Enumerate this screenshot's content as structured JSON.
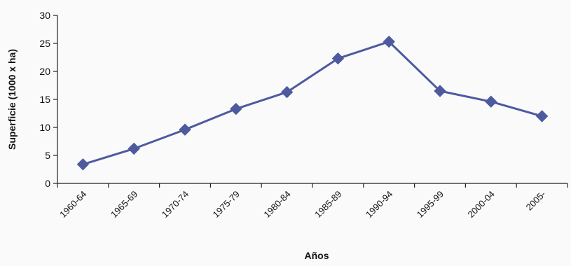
{
  "chart_data": {
    "type": "line",
    "title": "",
    "xlabel": "Años",
    "ylabel": "Superficie (1000 x ha)",
    "categories": [
      "1960-64",
      "1965-69",
      "1970-74",
      "1975-79",
      "1980-84",
      "1985-89",
      "1990-94",
      "1995-99",
      "2000-04",
      "2005-"
    ],
    "series": [
      {
        "values": [
          3.4,
          6.2,
          9.6,
          13.3,
          16.3,
          22.3,
          25.3,
          16.5,
          14.6,
          12.0
        ],
        "color": "#4d5a9e",
        "marker": "diamond"
      }
    ],
    "ylim": [
      0,
      30
    ],
    "yticks": [
      0,
      5,
      10,
      15,
      20,
      25,
      30
    ],
    "grid": false,
    "legend": "none"
  }
}
